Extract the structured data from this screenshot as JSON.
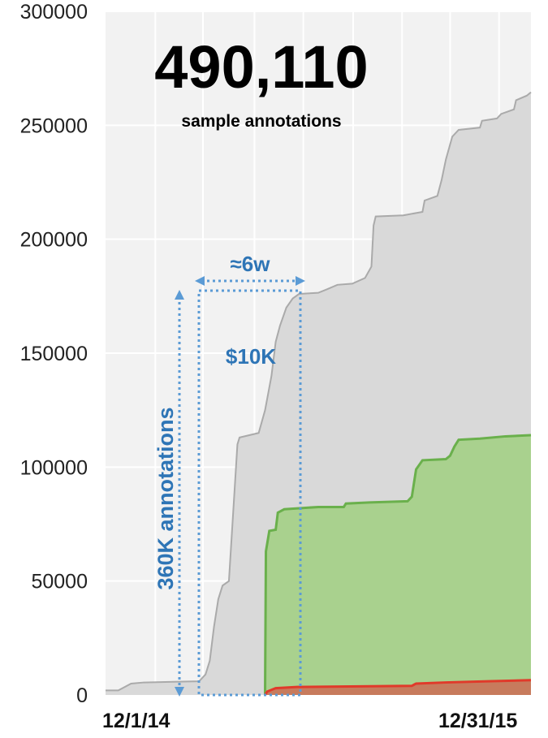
{
  "chart_data": {
    "type": "area",
    "title": "",
    "xlabel": "",
    "ylabel": "",
    "ylim": [
      0,
      300000
    ],
    "yticks": [
      0,
      50000,
      100000,
      150000,
      200000,
      250000,
      300000
    ],
    "xtick_labels": [
      "12/1/14",
      "12/31/15"
    ],
    "grid": true,
    "highlight_total": "490,110",
    "highlight_label": "sample annotations",
    "series": [
      {
        "color": "#d9d9d9",
        "stroke": "#aaaaaa",
        "points": [
          [
            0.0,
            2000
          ],
          [
            0.03,
            2000
          ],
          [
            0.06,
            5000
          ],
          [
            0.09,
            5500
          ],
          [
            0.16,
            5800
          ],
          [
            0.22,
            6000
          ],
          [
            0.235,
            9000
          ],
          [
            0.245,
            15000
          ],
          [
            0.255,
            30000
          ],
          [
            0.265,
            42000
          ],
          [
            0.275,
            48000
          ],
          [
            0.29,
            50000
          ],
          [
            0.3,
            80000
          ],
          [
            0.31,
            110000
          ],
          [
            0.315,
            113000
          ],
          [
            0.36,
            115000
          ],
          [
            0.375,
            125000
          ],
          [
            0.39,
            140000
          ],
          [
            0.4,
            155000
          ],
          [
            0.41,
            162000
          ],
          [
            0.425,
            170000
          ],
          [
            0.44,
            174000
          ],
          [
            0.455,
            176000
          ],
          [
            0.5,
            176500
          ],
          [
            0.52,
            178000
          ],
          [
            0.545,
            180000
          ],
          [
            0.58,
            180500
          ],
          [
            0.61,
            183000
          ],
          [
            0.625,
            188000
          ],
          [
            0.63,
            206000
          ],
          [
            0.635,
            210000
          ],
          [
            0.7,
            210500
          ],
          [
            0.745,
            212000
          ],
          [
            0.75,
            217000
          ],
          [
            0.78,
            219000
          ],
          [
            0.79,
            226000
          ],
          [
            0.8,
            235000
          ],
          [
            0.815,
            245000
          ],
          [
            0.83,
            248000
          ],
          [
            0.88,
            249000
          ],
          [
            0.885,
            252000
          ],
          [
            0.92,
            253000
          ],
          [
            0.93,
            255000
          ],
          [
            0.96,
            257000
          ],
          [
            0.965,
            261000
          ],
          [
            0.99,
            263000
          ],
          [
            1.0,
            264500
          ]
        ]
      },
      {
        "color": "#a9d18e",
        "stroke": "#6ab04c",
        "points": [
          [
            0.375,
            0
          ],
          [
            0.377,
            63000
          ],
          [
            0.385,
            72000
          ],
          [
            0.4,
            72500
          ],
          [
            0.405,
            80000
          ],
          [
            0.42,
            81500
          ],
          [
            0.5,
            82500
          ],
          [
            0.56,
            82500
          ],
          [
            0.565,
            84000
          ],
          [
            0.62,
            84500
          ],
          [
            0.71,
            85000
          ],
          [
            0.72,
            87000
          ],
          [
            0.73,
            99000
          ],
          [
            0.745,
            103000
          ],
          [
            0.8,
            103500
          ],
          [
            0.81,
            105000
          ],
          [
            0.82,
            109000
          ],
          [
            0.83,
            112000
          ],
          [
            0.88,
            112500
          ],
          [
            0.94,
            113500
          ],
          [
            1.0,
            114000
          ]
        ]
      },
      {
        "color": "#c77b5d",
        "stroke": "#e03a2a",
        "points": [
          [
            0.375,
            0
          ],
          [
            0.38,
            1500
          ],
          [
            0.4,
            3000
          ],
          [
            0.45,
            3500
          ],
          [
            0.72,
            4000
          ],
          [
            0.73,
            5000
          ],
          [
            0.8,
            5500
          ],
          [
            0.9,
            6000
          ],
          [
            1.0,
            6500
          ]
        ]
      }
    ],
    "annotations": {
      "vertical_label": "360K annotations",
      "horizontal_label": "≈6w",
      "cost_label": "$10K"
    }
  }
}
